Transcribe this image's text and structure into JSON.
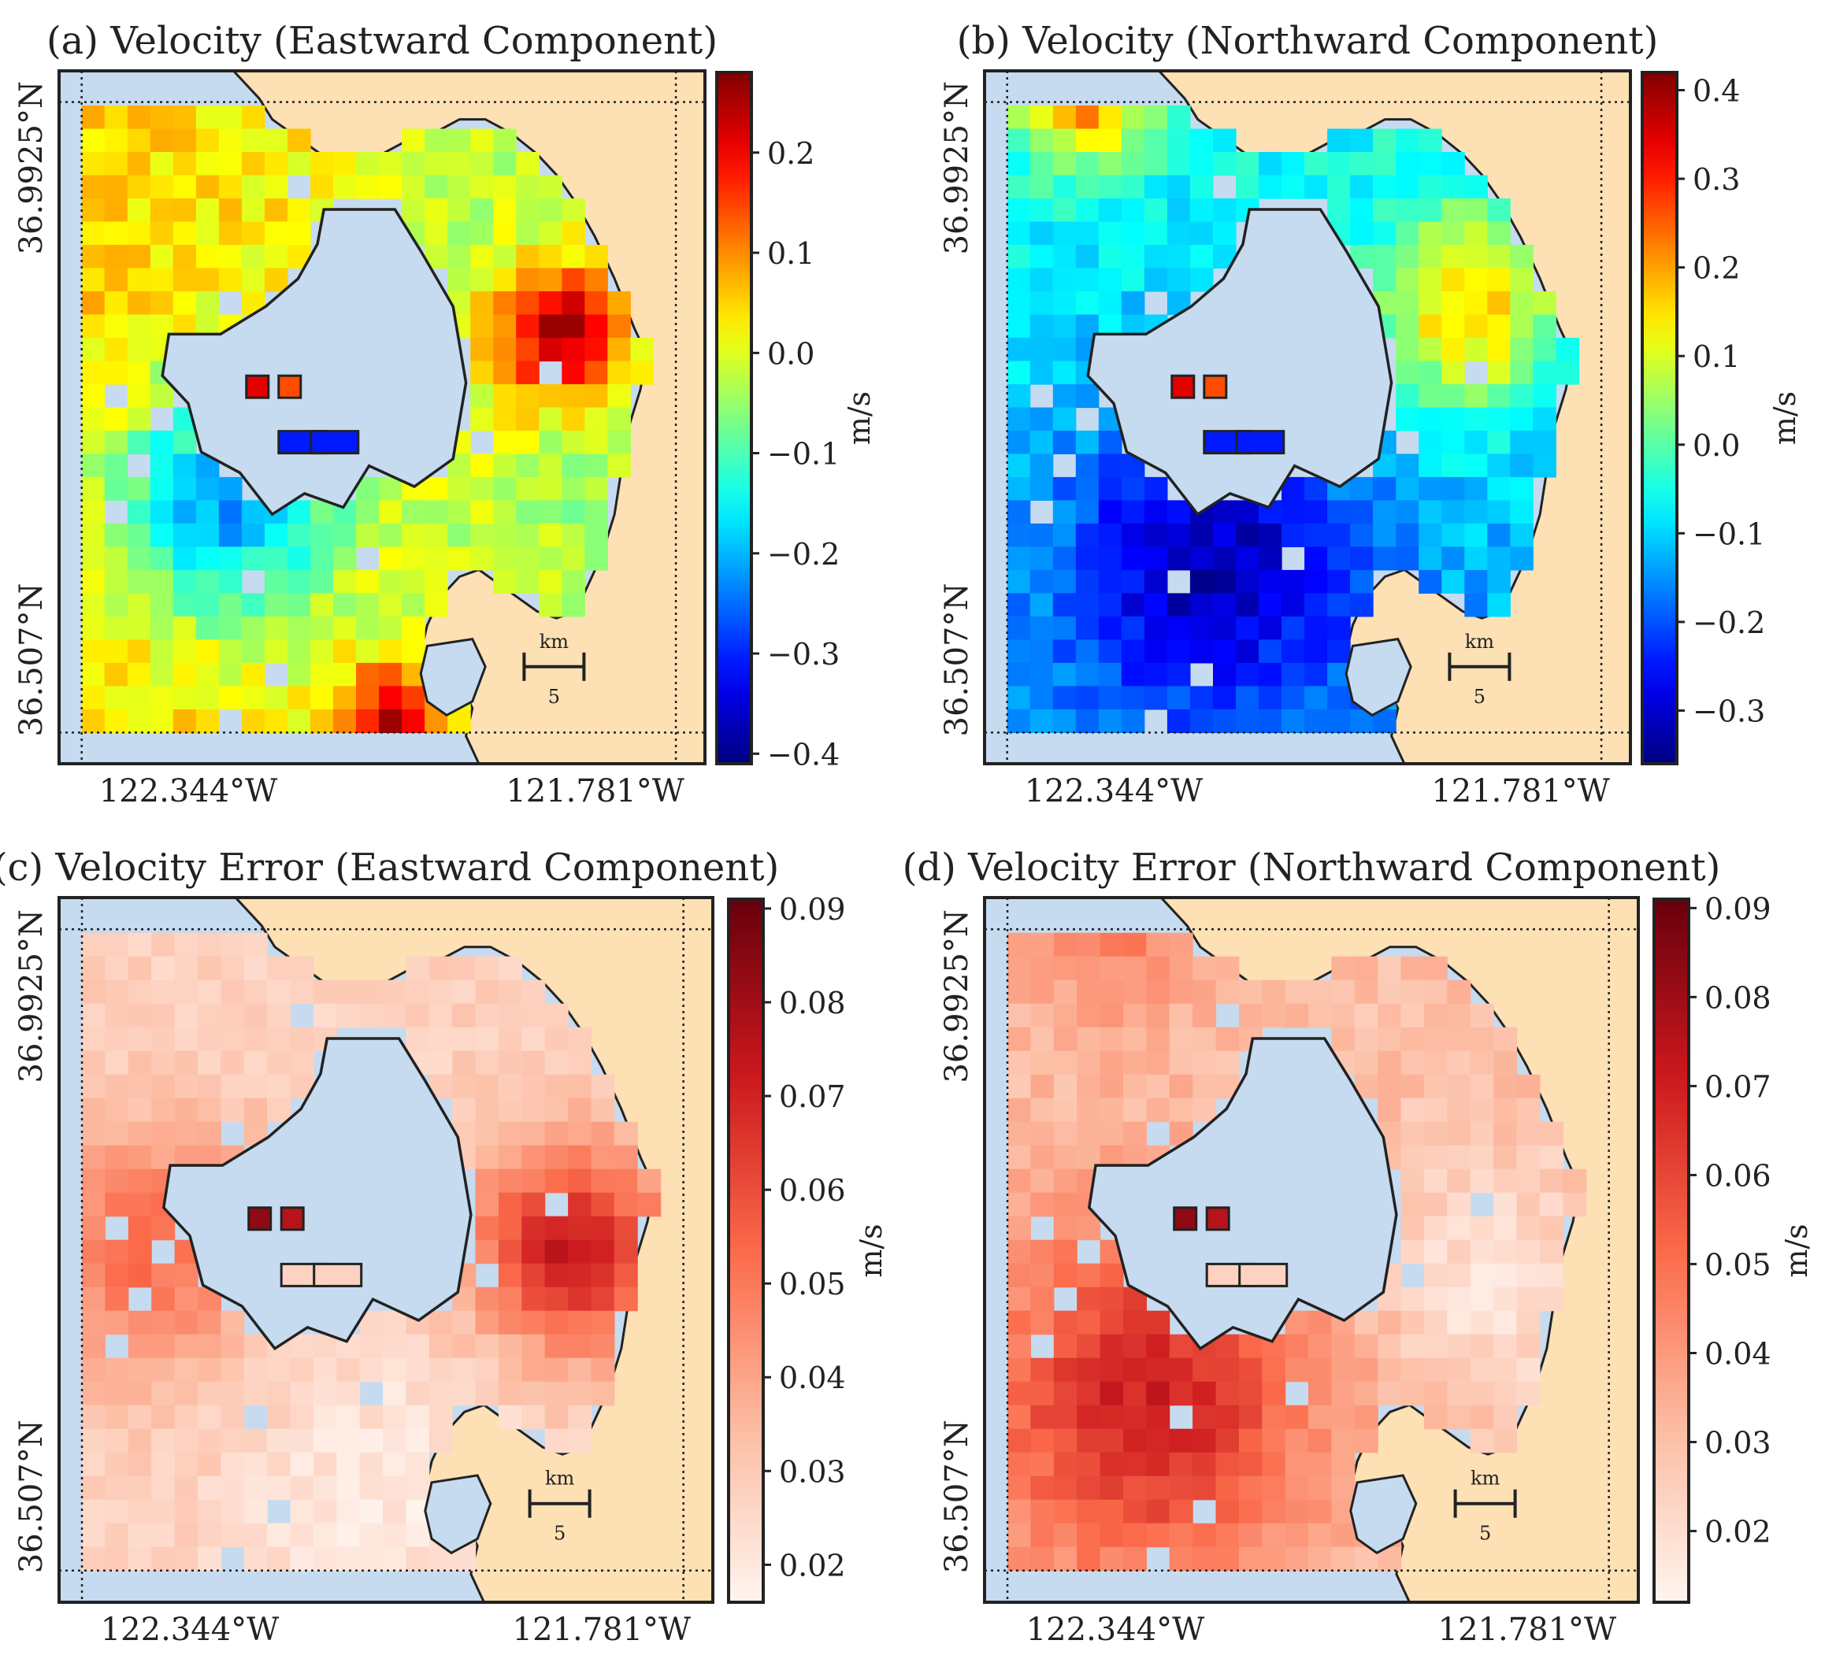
{
  "figure": {
    "panels": [
      {
        "id": "a",
        "title": "(a) Velocity (Eastward Component)",
        "lat_labels": [
          "36.9925°N",
          "36.507°N"
        ],
        "lon_labels": [
          "122.344°W",
          "121.781°W"
        ],
        "scalebar": {
          "unit": "km",
          "value": "5"
        },
        "colorbar": {
          "cmap": "jet",
          "min": -0.41,
          "max": 0.28,
          "ticks": [
            "0.2",
            "0.1",
            "0.0",
            "−0.1",
            "−0.2",
            "−0.3",
            "−0.4"
          ],
          "tick_values": [
            0.2,
            0.1,
            0.0,
            -0.1,
            -0.2,
            -0.3,
            -0.4
          ],
          "label": "m/s"
        },
        "field": {
          "type": "eastward",
          "mean": -0.05,
          "amp": 0.18
        }
      },
      {
        "id": "b",
        "title": "(b) Velocity (Northward Component)",
        "lat_labels": [
          "36.9925°N",
          "36.507°N"
        ],
        "lon_labels": [
          "122.344°W",
          "121.781°W"
        ],
        "scalebar": {
          "unit": "km",
          "value": "5"
        },
        "colorbar": {
          "cmap": "jet",
          "min": -0.36,
          "max": 0.42,
          "ticks": [
            "0.4",
            "0.3",
            "0.2",
            "0.1",
            "0.0",
            "−0.1",
            "−0.2",
            "−0.3"
          ],
          "tick_values": [
            0.4,
            0.3,
            0.2,
            0.1,
            0.0,
            -0.1,
            -0.2,
            -0.3
          ],
          "label": "m/s"
        },
        "field": {
          "type": "northward",
          "mean": -0.04,
          "amp": 0.2
        }
      },
      {
        "id": "c",
        "title": "(c) Velocity Error (Eastward Component)",
        "lat_labels": [
          "36.9925°N",
          "36.507°N"
        ],
        "lon_labels": [
          "122.344°W",
          "121.781°W"
        ],
        "scalebar": {
          "unit": "km",
          "value": "5"
        },
        "colorbar": {
          "cmap": "reds",
          "min": 0.016,
          "max": 0.091,
          "ticks": [
            "0.09",
            "0.08",
            "0.07",
            "0.06",
            "0.05",
            "0.04",
            "0.03",
            "0.02"
          ],
          "tick_values": [
            0.09,
            0.08,
            0.07,
            0.06,
            0.05,
            0.04,
            0.03,
            0.02
          ],
          "label": "m/s"
        },
        "field": {
          "type": "error_east",
          "mean": 0.04,
          "amp": 0.03
        }
      },
      {
        "id": "d",
        "title": "(d) Velocity Error (Northward Component)",
        "lat_labels": [
          "36.9925°N",
          "36.507°N"
        ],
        "lon_labels": [
          "122.344°W",
          "121.781°W"
        ],
        "scalebar": {
          "unit": "km",
          "value": "5"
        },
        "colorbar": {
          "cmap": "reds",
          "min": 0.012,
          "max": 0.091,
          "ticks": [
            "0.09",
            "0.08",
            "0.07",
            "0.06",
            "0.05",
            "0.04",
            "0.03",
            "0.02"
          ],
          "tick_values": [
            0.09,
            0.08,
            0.07,
            0.06,
            0.05,
            0.04,
            0.03,
            0.02
          ],
          "label": "m/s"
        },
        "field": {
          "type": "error_north",
          "mean": 0.045,
          "amp": 0.03
        }
      }
    ]
  },
  "colors": {
    "ocean": "#c6dbef",
    "land": "#fde0b4",
    "frame": "#222222"
  },
  "chart_data": [
    {
      "type": "heatmap",
      "title": "(a) Velocity (Eastward Component)",
      "colorbar_label": "m/s",
      "colorbar_range": [
        -0.41,
        0.28
      ],
      "x_ticks": [
        "122.344°W",
        "121.781°W"
      ],
      "y_ticks": [
        "36.9925°N",
        "36.507°N"
      ]
    },
    {
      "type": "heatmap",
      "title": "(b) Velocity (Northward Component)",
      "colorbar_label": "m/s",
      "colorbar_range": [
        -0.36,
        0.42
      ],
      "x_ticks": [
        "122.344°W",
        "121.781°W"
      ],
      "y_ticks": [
        "36.9925°N",
        "36.507°N"
      ]
    },
    {
      "type": "heatmap",
      "title": "(c) Velocity Error (Eastward Component)",
      "colorbar_label": "m/s",
      "colorbar_range": [
        0.016,
        0.091
      ],
      "x_ticks": [
        "122.344°W",
        "121.781°W"
      ],
      "y_ticks": [
        "36.9925°N",
        "36.507°N"
      ]
    },
    {
      "type": "heatmap",
      "title": "(d) Velocity Error (Northward Component)",
      "colorbar_label": "m/s",
      "colorbar_range": [
        0.012,
        0.091
      ],
      "x_ticks": [
        "122.344°W",
        "121.781°W"
      ],
      "y_ticks": [
        "36.9925°N",
        "36.507°N"
      ]
    }
  ]
}
